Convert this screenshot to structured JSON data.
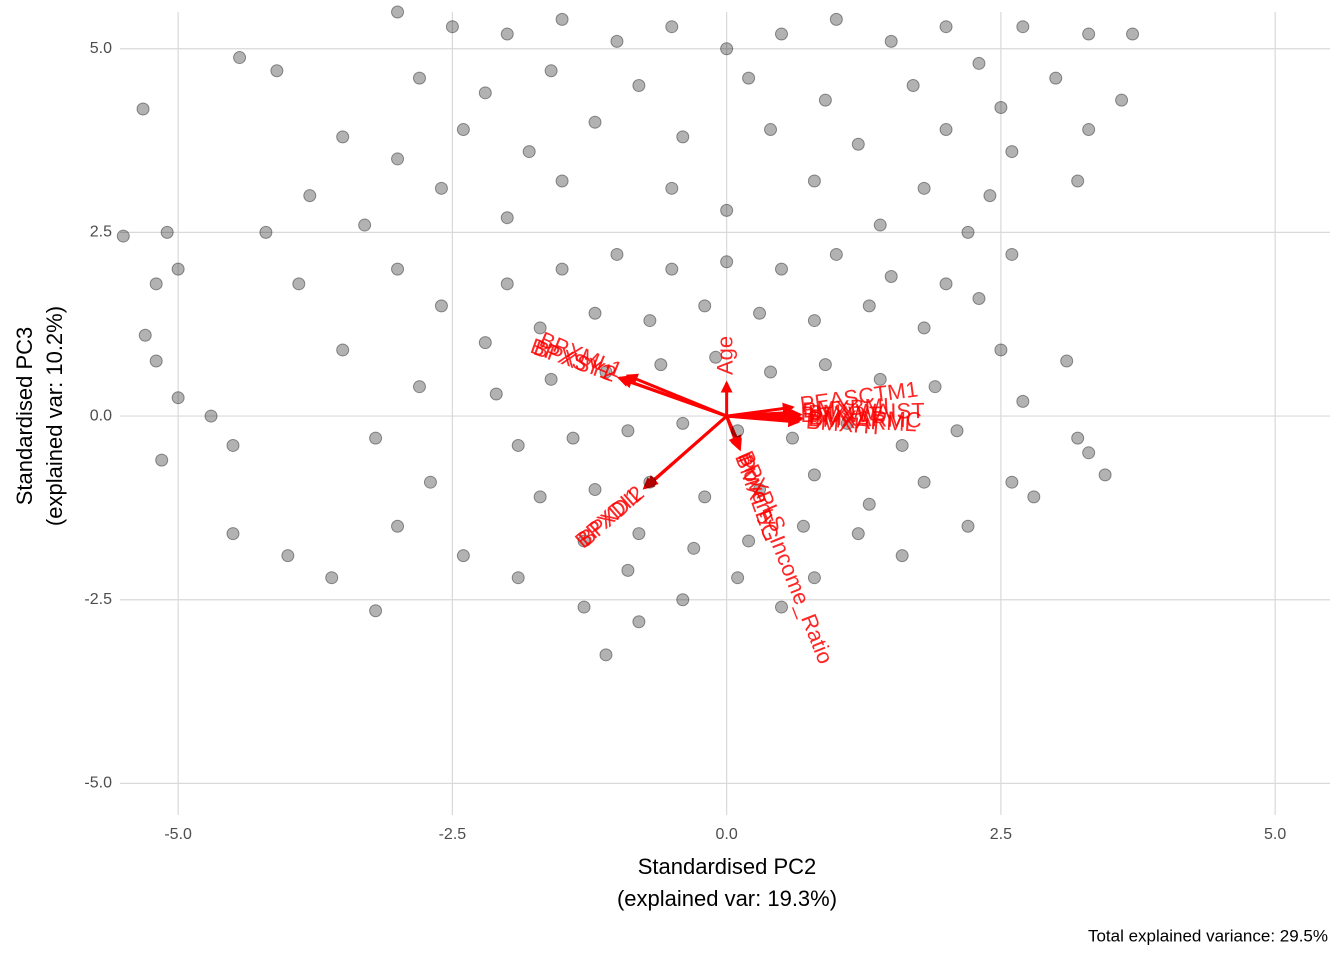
{
  "chart_data": {
    "type": "biplot",
    "xlabel": [
      "Standardised PC2",
      "(explained var: 19.3%)"
    ],
    "ylabel": [
      "Standardised PC3",
      "(explained var: 10.2%)"
    ],
    "caption": "Total explained variance: 29.5%",
    "xlim": [
      -5.53,
      5.5
    ],
    "ylim": [
      -5.43,
      5.5
    ],
    "xticks": [
      {
        "value": -5,
        "label": "-5.0"
      },
      -2.5,
      {
        "value": 0,
        "label": "0.0"
      },
      2.5,
      {
        "value": 5,
        "label": "5.0"
      }
    ],
    "yticks": [
      {
        "value": -5,
        "label": "-5.0"
      },
      -2.5,
      {
        "value": 0,
        "label": "0.0"
      },
      2.5,
      {
        "value": 5,
        "label": "5.0"
      }
    ],
    "grid": true,
    "point_color": "#000000",
    "arrow_color": "#ff0000",
    "x": [
      -5.32,
      -4.44,
      -4.1,
      -5.5,
      -5.1,
      -5.0,
      -5.2,
      -5.3,
      -5.2,
      -5.0,
      -5.15,
      -4.7,
      -4.5,
      -4.5,
      -4.0,
      -3.6,
      -3.2,
      -1.1,
      -1.3,
      -0.8,
      0.5,
      3.45,
      3.3,
      3.1,
      3.2,
      2.8,
      3.7,
      3.6,
      3.3,
      2.7,
      3.0,
      3.2,
      3.3,
      -3,
      -2.5,
      -2,
      -1.5,
      -1,
      -0.5,
      0,
      0.5,
      1,
      1.5,
      2,
      2.3,
      -2.8,
      -2.2,
      -1.6,
      -0.8,
      0.2,
      0.9,
      1.7,
      2.5,
      -3.5,
      -3,
      -2.4,
      -1.8,
      -1.2,
      -0.4,
      0.4,
      1.2,
      2.0,
      2.6,
      -3.8,
      -2.6,
      -1.5,
      -0.5,
      0.8,
      1.8,
      2.4,
      -4.2,
      -3.3,
      -2.0,
      0.0,
      1.4,
      2.2,
      -3.9,
      -3.0,
      -2.6,
      -3.5,
      -2.8,
      -3.2,
      -2.7,
      -3.0,
      -2.4,
      -1.9,
      -0.4,
      0.8,
      1.6,
      2.2,
      2.6,
      2.7,
      2.5,
      2.3,
      2.6,
      -2,
      -1.5,
      -1,
      -0.5,
      0,
      0.5,
      1,
      1.5,
      2,
      -2.2,
      -1.7,
      -1.2,
      -0.7,
      -0.2,
      0.3,
      0.8,
      1.3,
      1.8,
      -2.1,
      -1.6,
      -1.1,
      -0.6,
      -0.1,
      0.4,
      0.9,
      1.4,
      1.9,
      -1.9,
      -1.4,
      -0.9,
      -0.4,
      0.1,
      0.6,
      1.1,
      1.6,
      2.1,
      -1.7,
      -1.2,
      -0.7,
      -0.2,
      0.3,
      0.8,
      1.3,
      1.8,
      -1.3,
      -0.8,
      -0.3,
      0.2,
      0.7,
      1.2,
      -0.9,
      0.1
    ],
    "values": [
      4.18,
      4.88,
      4.7,
      2.45,
      2.5,
      2.0,
      1.8,
      1.1,
      0.75,
      0.25,
      -0.6,
      0,
      -0.4,
      -1.6,
      -1.9,
      -2.2,
      -2.65,
      -3.25,
      -2.6,
      -2.8,
      -2.6,
      -0.8,
      -0.5,
      0.75,
      -0.3,
      -1.1,
      5.2,
      4.3,
      5.2,
      5.3,
      4.6,
      3.2,
      3.9,
      5.5,
      5.3,
      5.2,
      5.4,
      5.1,
      5.3,
      5.0,
      5.2,
      5.4,
      5.1,
      5.3,
      4.8,
      4.6,
      4.4,
      4.7,
      4.5,
      4.6,
      4.3,
      4.5,
      4.2,
      3.8,
      3.5,
      3.9,
      3.6,
      4.0,
      3.8,
      3.9,
      3.7,
      3.9,
      3.6,
      3.0,
      3.1,
      3.2,
      3.1,
      3.2,
      3.1,
      3.0,
      2.5,
      2.6,
      2.7,
      2.8,
      2.6,
      2.5,
      1.8,
      2.0,
      1.5,
      0.9,
      0.4,
      -0.3,
      -0.9,
      -1.5,
      -1.9,
      -2.2,
      -2.5,
      -2.2,
      -1.9,
      -1.5,
      -0.9,
      0.2,
      0.9,
      1.6,
      2.2,
      1.8,
      2.0,
      2.2,
      2.0,
      2.1,
      2.0,
      2.2,
      1.9,
      1.8,
      1.0,
      1.2,
      1.4,
      1.3,
      1.5,
      1.4,
      1.3,
      1.5,
      1.2,
      0.3,
      0.5,
      0.6,
      0.7,
      0.8,
      0.6,
      0.7,
      0.5,
      0.4,
      -0.4,
      -0.3,
      -0.2,
      -0.1,
      -0.2,
      -0.3,
      -0.1,
      -0.4,
      -0.2,
      -1.1,
      -1.0,
      -0.9,
      -1.1,
      -1.0,
      -0.8,
      -1.2,
      -0.9,
      -1.7,
      -1.6,
      -1.8,
      -1.7,
      -1.5,
      -1.6,
      -2.1,
      -2.2
    ],
    "arrows": [
      {
        "label": "BPXSY1",
        "x": -0.98,
        "y": 0.52
      },
      {
        "label": "BPXSY2",
        "x": -0.95,
        "y": 0.5
      },
      {
        "label": "BPXML1",
        "x": -0.9,
        "y": 0.55
      },
      {
        "label": "BPXDI1",
        "x": -0.75,
        "y": -0.98
      },
      {
        "label": "BPXDI2",
        "x": -0.72,
        "y": -0.95
      },
      {
        "label": "Age",
        "x": 0,
        "y": 0.45
      },
      {
        "label": "PEASCTM1",
        "x": 0.6,
        "y": 0.12
      },
      {
        "label": "BMXWAIST",
        "x": 0.67,
        "y": 0.02
      },
      {
        "label": "BMXBMI",
        "x": 0.62,
        "y": 0.05
      },
      {
        "label": "BMXWT",
        "x": 0.6,
        "y": 0.0
      },
      {
        "label": "BMXARMC",
        "x": 0.68,
        "y": -0.03
      },
      {
        "label": "BMXARML",
        "x": 0.67,
        "y": -0.05
      },
      {
        "label": "BMXHT",
        "x": 0.65,
        "y": -0.08
      },
      {
        "label": "BPXPLS",
        "x": 0.12,
        "y": -0.4
      },
      {
        "label": "Poverty_Income_Ratio",
        "x": 0.12,
        "y": -0.45
      },
      {
        "label": "BMXLEG",
        "x": 0.1,
        "y": -0.42
      }
    ]
  }
}
